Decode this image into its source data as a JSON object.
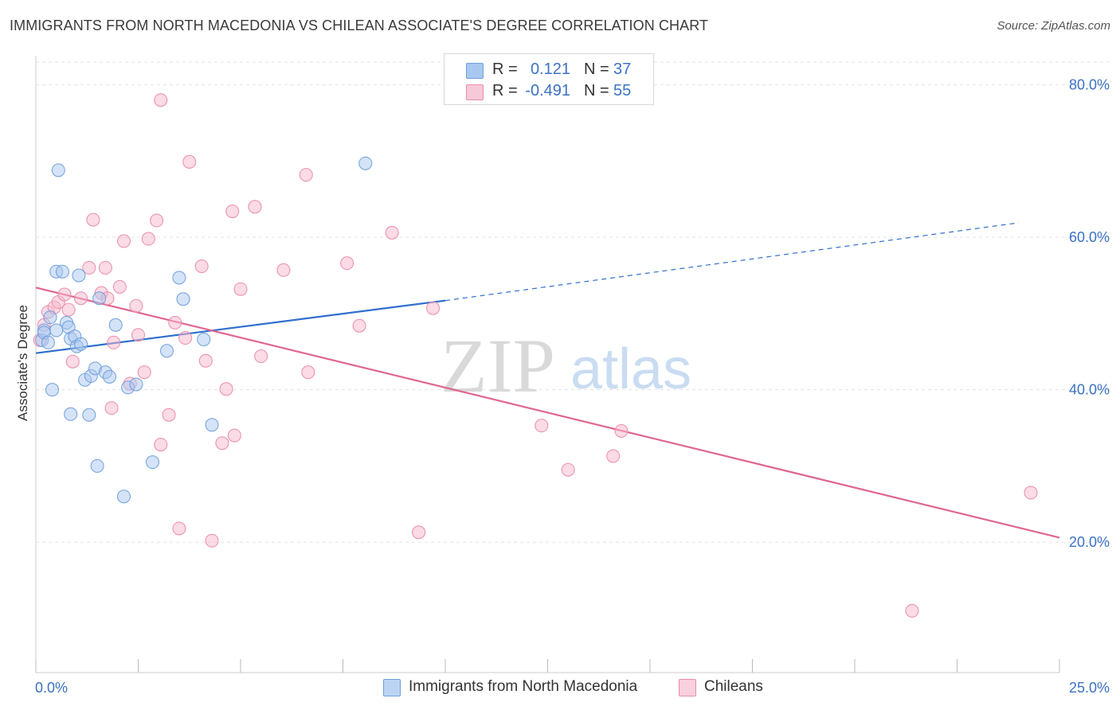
{
  "title": "IMMIGRANTS FROM NORTH MACEDONIA VS CHILEAN ASSOCIATE'S DEGREE CORRELATION CHART",
  "source": "Source: ZipAtlas.com",
  "legend": {
    "rows": [
      {
        "r_label": "R =",
        "r_value": "0.121",
        "n_label": "N =",
        "n_value": "37"
      },
      {
        "r_label": "R =",
        "r_value": "-0.491",
        "n_label": "N =",
        "n_value": "55"
      }
    ]
  },
  "colors": {
    "blue_fill": "#a9c8f0",
    "blue_stroke": "#6f9fdc",
    "blue_line": "#2f6fcd",
    "pink_fill": "#f7b7cb",
    "pink_stroke": "#ea8caa",
    "pink_line": "#e0668f",
    "tick_label": "#3b72c4",
    "grid": "#e3e3e3"
  },
  "watermark": {
    "zip": "ZIP",
    "atlas": "atlas"
  },
  "chart_data": {
    "type": "scatter",
    "title": "IMMIGRANTS FROM NORTH MACEDONIA VS CHILEAN ASSOCIATE'S DEGREE CORRELATION CHART",
    "xlabel": "",
    "ylabel": "Associate's Degree",
    "xlim": [
      0,
      25
    ],
    "ylim": [
      3,
      82
    ],
    "x_tick_labels": [
      "0.0%",
      "25.0%"
    ],
    "y_ticks": [
      20,
      40,
      60,
      80
    ],
    "y_tick_labels": [
      "20.0%",
      "40.0%",
      "60.0%",
      "80.0%"
    ],
    "grid": true,
    "legend_position": "bottom",
    "series": [
      {
        "name": "Immigrants from North Macedonia",
        "color": "#6f9fdc",
        "trend": {
          "x": [
            0,
            10.0
          ],
          "y": [
            44.8,
            51.7
          ],
          "dashed_to": [
            24.0,
            61.9
          ]
        },
        "points": [
          [
            0.15,
            46.5
          ],
          [
            0.2,
            47.8
          ],
          [
            0.35,
            49.5
          ],
          [
            0.4,
            40.0
          ],
          [
            0.5,
            47.8
          ],
          [
            0.5,
            55.5
          ],
          [
            0.55,
            68.8
          ],
          [
            0.65,
            55.5
          ],
          [
            0.75,
            48.8
          ],
          [
            0.8,
            48.2
          ],
          [
            0.85,
            46.7
          ],
          [
            0.85,
            36.8
          ],
          [
            0.95,
            47.0
          ],
          [
            1.0,
            45.7
          ],
          [
            1.05,
            55.0
          ],
          [
            1.1,
            46.0
          ],
          [
            1.2,
            41.3
          ],
          [
            1.3,
            36.7
          ],
          [
            1.35,
            41.8
          ],
          [
            1.45,
            42.8
          ],
          [
            1.5,
            30.0
          ],
          [
            1.55,
            52.0
          ],
          [
            1.7,
            42.3
          ],
          [
            1.8,
            41.7
          ],
          [
            1.95,
            48.5
          ],
          [
            2.15,
            26.0
          ],
          [
            2.25,
            40.3
          ],
          [
            2.45,
            40.7
          ],
          [
            2.85,
            30.5
          ],
          [
            3.2,
            45.1
          ],
          [
            3.5,
            54.7
          ],
          [
            3.6,
            51.9
          ],
          [
            4.1,
            46.6
          ],
          [
            4.3,
            35.4
          ],
          [
            8.05,
            69.7
          ],
          [
            0.2,
            47.5
          ],
          [
            0.3,
            46.2
          ]
        ]
      },
      {
        "name": "Chileans",
        "color": "#ea8caa",
        "trend": {
          "x": [
            0,
            25.0
          ],
          "y": [
            53.4,
            20.6
          ]
        },
        "points": [
          [
            0.1,
            46.5
          ],
          [
            0.2,
            48.5
          ],
          [
            0.3,
            50.2
          ],
          [
            0.45,
            50.8
          ],
          [
            0.55,
            51.5
          ],
          [
            0.7,
            52.5
          ],
          [
            0.8,
            50.5
          ],
          [
            0.9,
            43.7
          ],
          [
            1.1,
            52.0
          ],
          [
            1.3,
            56.0
          ],
          [
            1.4,
            62.3
          ],
          [
            1.6,
            52.7
          ],
          [
            1.7,
            56.0
          ],
          [
            1.75,
            52.0
          ],
          [
            1.85,
            37.6
          ],
          [
            1.9,
            46.2
          ],
          [
            2.05,
            53.5
          ],
          [
            2.15,
            59.5
          ],
          [
            2.3,
            40.8
          ],
          [
            2.45,
            51.0
          ],
          [
            2.5,
            47.2
          ],
          [
            2.65,
            42.3
          ],
          [
            2.75,
            59.8
          ],
          [
            2.95,
            62.2
          ],
          [
            3.05,
            78.0
          ],
          [
            3.05,
            32.8
          ],
          [
            3.25,
            36.7
          ],
          [
            3.4,
            48.8
          ],
          [
            3.5,
            21.8
          ],
          [
            3.65,
            46.8
          ],
          [
            3.75,
            69.9
          ],
          [
            4.05,
            56.2
          ],
          [
            4.15,
            43.8
          ],
          [
            4.3,
            20.2
          ],
          [
            4.55,
            33.0
          ],
          [
            4.65,
            40.1
          ],
          [
            4.8,
            63.4
          ],
          [
            4.85,
            34.0
          ],
          [
            5.0,
            53.2
          ],
          [
            5.35,
            64.0
          ],
          [
            5.5,
            44.4
          ],
          [
            6.05,
            55.7
          ],
          [
            6.6,
            68.2
          ],
          [
            6.65,
            42.3
          ],
          [
            7.6,
            56.6
          ],
          [
            7.9,
            48.4
          ],
          [
            8.7,
            60.6
          ],
          [
            9.35,
            21.3
          ],
          [
            9.7,
            50.7
          ],
          [
            12.35,
            35.3
          ],
          [
            13.0,
            29.5
          ],
          [
            14.1,
            31.3
          ],
          [
            14.3,
            34.6
          ],
          [
            21.4,
            11.0
          ],
          [
            24.3,
            26.5
          ]
        ]
      }
    ]
  }
}
